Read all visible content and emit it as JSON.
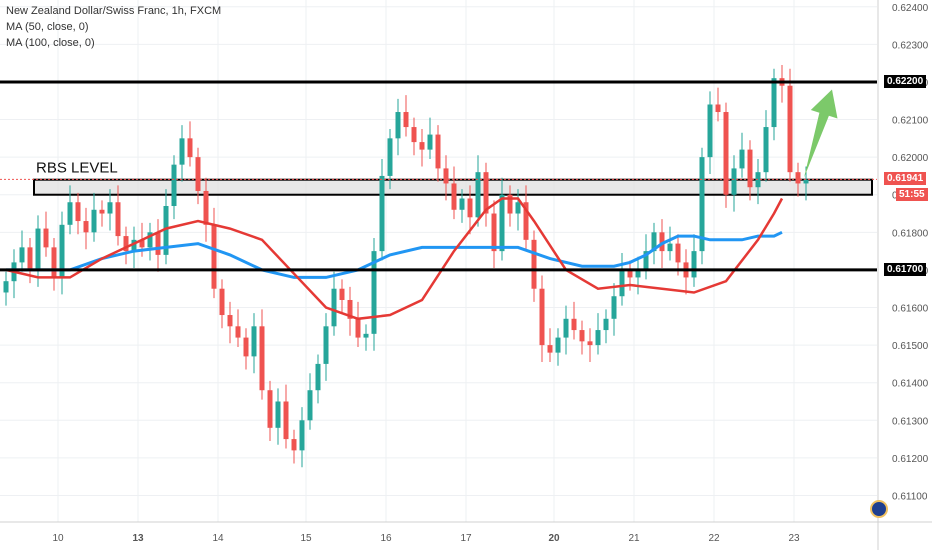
{
  "legend": {
    "title": "New Zealand Dollar/Swiss Franc, 1h, FXCM",
    "ma1": "MA (50, close, 0)",
    "ma2": "MA (100, close, 0)"
  },
  "annotation": {
    "text": "RBS LEVEL"
  },
  "price_tags": {
    "upper_level": "0.62200",
    "current": "0.61941",
    "countdown": "51:55",
    "lower_level": "0.61700"
  },
  "colors": {
    "up": "#26a69a",
    "down": "#ef5350",
    "ma50": "#e53935",
    "ma100": "#2196f3",
    "arrow": "#7cc96a",
    "level": "#000000",
    "zone": "#e0e0e0"
  },
  "chart_data": {
    "type": "candlestick",
    "title": "New Zealand Dollar/Swiss Franc, 1h, FXCM",
    "ylim": [
      0.6108,
      0.6241
    ],
    "y_ticks": [
      "0.62400",
      "0.62300",
      "0.62200",
      "0.62100",
      "0.62000",
      "0.61900",
      "0.61800",
      "0.61700",
      "0.61600",
      "0.61500",
      "0.61400",
      "0.61300",
      "0.61200",
      "0.61100"
    ],
    "x_ticks": [
      "10",
      "13",
      "14",
      "15",
      "16",
      "17",
      "20",
      "21",
      "22",
      "23"
    ],
    "series": [
      {
        "name": "MA (50, close, 0)",
        "points": [
          [
            0,
            0.617
          ],
          [
            4,
            0.6168
          ],
          [
            8,
            0.6168
          ],
          [
            12,
            0.6173
          ],
          [
            16,
            0.6177
          ],
          [
            20,
            0.6181
          ],
          [
            24,
            0.6183
          ],
          [
            28,
            0.6181
          ],
          [
            32,
            0.6178
          ],
          [
            36,
            0.6169
          ],
          [
            40,
            0.616
          ],
          [
            44,
            0.6157
          ],
          [
            48,
            0.6158
          ],
          [
            52,
            0.6162
          ],
          [
            56,
            0.6175
          ],
          [
            60,
            0.6186
          ],
          [
            62,
            0.6189
          ],
          [
            64,
            0.6189
          ],
          [
            66,
            0.6183
          ],
          [
            70,
            0.617
          ],
          [
            74,
            0.6165
          ],
          [
            78,
            0.6166
          ],
          [
            82,
            0.6165
          ],
          [
            86,
            0.6164
          ],
          [
            90,
            0.6167
          ],
          [
            94,
            0.6178
          ],
          [
            96,
            0.6185
          ],
          [
            97,
            0.6189
          ]
        ]
      },
      {
        "name": "MA (100, close, 0)",
        "points": [
          [
            0,
            0.617
          ],
          [
            8,
            0.617
          ],
          [
            12,
            0.6173
          ],
          [
            16,
            0.6175
          ],
          [
            20,
            0.6176
          ],
          [
            24,
            0.6177
          ],
          [
            28,
            0.6174
          ],
          [
            32,
            0.617
          ],
          [
            36,
            0.6168
          ],
          [
            40,
            0.6168
          ],
          [
            44,
            0.617
          ],
          [
            48,
            0.6174
          ],
          [
            52,
            0.6176
          ],
          [
            56,
            0.6176
          ],
          [
            60,
            0.6176
          ],
          [
            64,
            0.6176
          ],
          [
            68,
            0.6173
          ],
          [
            72,
            0.6171
          ],
          [
            74,
            0.6171
          ],
          [
            76,
            0.6171
          ],
          [
            78,
            0.6172
          ],
          [
            80,
            0.6174
          ],
          [
            82,
            0.6177
          ],
          [
            84,
            0.6179
          ],
          [
            86,
            0.6179
          ],
          [
            88,
            0.6178
          ],
          [
            90,
            0.6178
          ],
          [
            92,
            0.6178
          ],
          [
            94,
            0.6179
          ],
          [
            96,
            0.6179
          ],
          [
            97,
            0.618
          ]
        ]
      }
    ],
    "levels": [
      0.622,
      0.617
    ],
    "zone": [
      0.619,
      0.6194
    ],
    "last_price": 0.61941,
    "closes": [
      0.6167,
      0.6172,
      0.6176,
      0.617,
      0.6181,
      0.6176,
      0.6168,
      0.6182,
      0.6188,
      0.6183,
      0.618,
      0.6186,
      0.6185,
      0.6188,
      0.6179,
      0.6175,
      0.6178,
      0.6176,
      0.618,
      0.6174,
      0.6187,
      0.6198,
      0.6205,
      0.62,
      0.6191,
      0.6182,
      0.6165,
      0.6158,
      0.6155,
      0.6152,
      0.6147,
      0.6155,
      0.6138,
      0.6128,
      0.6135,
      0.6125,
      0.6122,
      0.613,
      0.6138,
      0.6145,
      0.6155,
      0.6165,
      0.6162,
      0.6157,
      0.6152,
      0.6153,
      0.6175,
      0.6195,
      0.6205,
      0.6212,
      0.6208,
      0.6204,
      0.6202,
      0.6206,
      0.6197,
      0.6193,
      0.6186,
      0.6189,
      0.6184,
      0.6196,
      0.6185,
      0.6175,
      0.619,
      0.6185,
      0.6188,
      0.6178,
      0.6165,
      0.615,
      0.6148,
      0.6152,
      0.6157,
      0.6154,
      0.6151,
      0.615,
      0.6154,
      0.6157,
      0.6163,
      0.617,
      0.6168,
      0.617,
      0.6175,
      0.618,
      0.6175,
      0.6177,
      0.6172,
      0.6168,
      0.6175,
      0.62,
      0.6214,
      0.6212,
      0.619,
      0.6197,
      0.6202,
      0.6192,
      0.6196,
      0.6208,
      0.6221,
      0.6219,
      0.6196,
      0.6193,
      0.6194
    ]
  }
}
